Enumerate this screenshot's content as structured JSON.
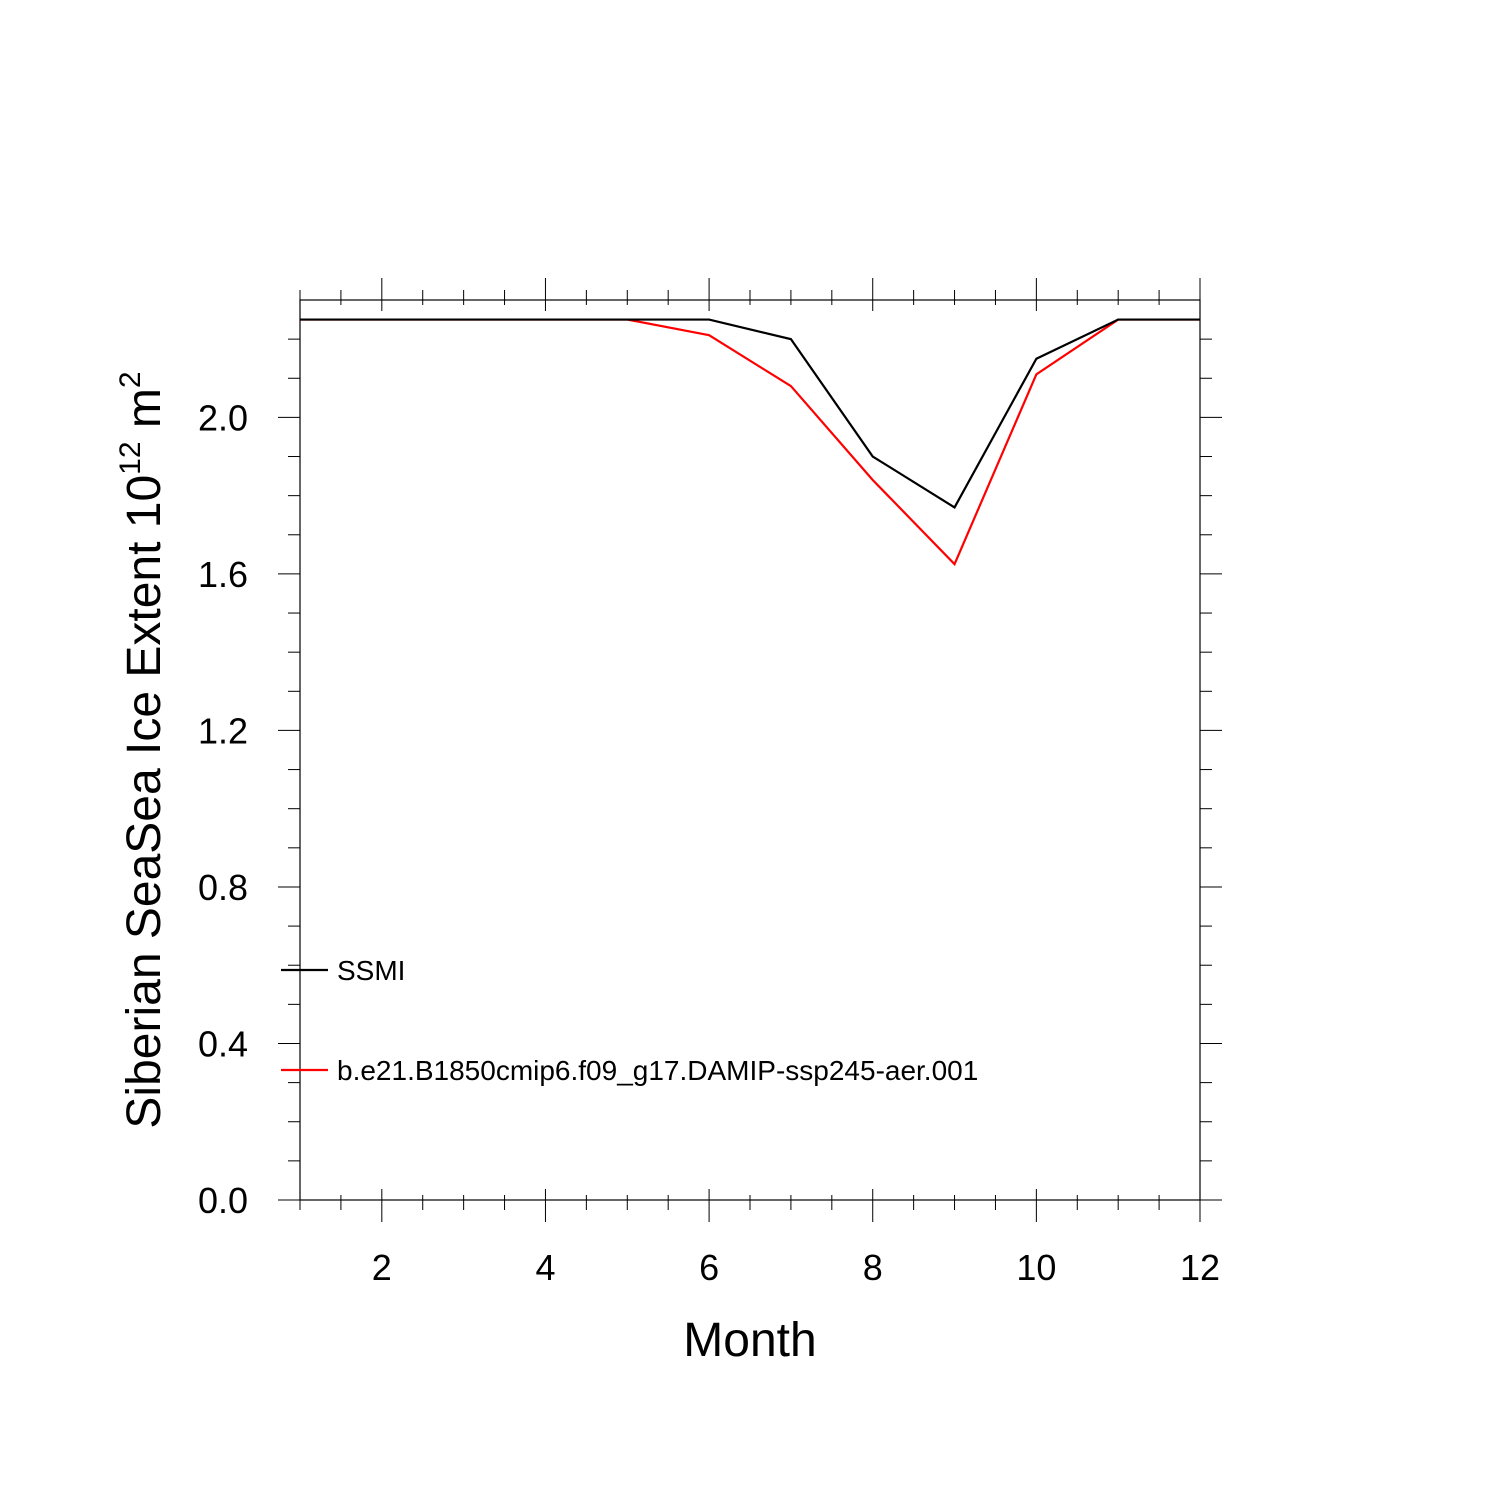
{
  "chart_data": {
    "type": "line",
    "xlabel": "Month",
    "ylabel": "Siberian SeaSea Ice Extent 10",
    "ylabel_sup1": "12",
    "ylabel_unit": " m",
    "ylabel_sup2": "2",
    "xlim": [
      1,
      12
    ],
    "ylim": [
      0,
      2.3
    ],
    "x_ticks": [
      2,
      4,
      6,
      8,
      10,
      12
    ],
    "x_tick_labels": [
      "2",
      "4",
      "6",
      "8",
      "10",
      "12"
    ],
    "y_ticks": [
      0,
      0.4,
      0.8,
      1.2,
      1.6,
      2.0
    ],
    "y_tick_labels": [
      "0.0",
      "0.4",
      "0.8",
      "1.2",
      "1.6",
      "2.0"
    ],
    "x": [
      1,
      2,
      3,
      4,
      5,
      6,
      7,
      8,
      9,
      10,
      11,
      12
    ],
    "series": [
      {
        "name": "SSMI",
        "color": "#000000",
        "values": [
          2.25,
          2.25,
          2.25,
          2.25,
          2.25,
          2.25,
          2.2,
          1.9,
          1.77,
          2.15,
          2.25,
          2.25
        ]
      },
      {
        "name": "b.e21.B1850cmip6.f09_g17.DAMIP-ssp245-aer.001",
        "color": "#ff0000",
        "values": [
          2.25,
          2.25,
          2.25,
          2.25,
          2.25,
          2.21,
          2.08,
          1.84,
          1.625,
          2.11,
          2.25,
          2.25
        ]
      }
    ],
    "legend_placement": "lower-left inside",
    "grid": false
  }
}
